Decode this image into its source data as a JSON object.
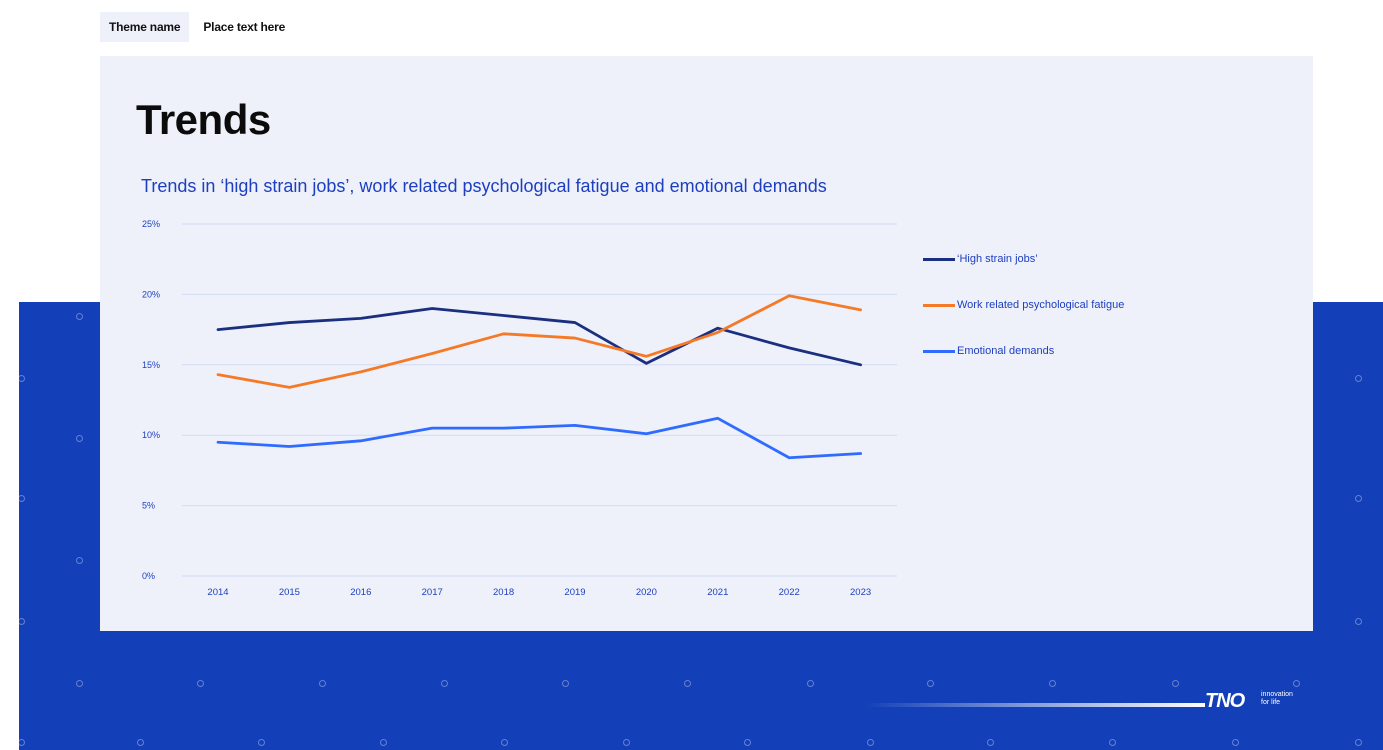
{
  "header": {
    "theme_name": "Theme name",
    "place_text": "Place text here"
  },
  "page": {
    "title": "Trends"
  },
  "chart_data": {
    "type": "line",
    "title": "Trends in ‘high strain jobs’, work related psychological fatigue and emotional demands",
    "xlabel": "",
    "ylabel": "",
    "categories": [
      "2014",
      "2015",
      "2016",
      "2017",
      "2018",
      "2019",
      "2020",
      "2021",
      "2022",
      "2023"
    ],
    "y_ticks": [
      "0%",
      "5%",
      "10%",
      "15%",
      "20%",
      "25%"
    ],
    "ylim": [
      0,
      25
    ],
    "grid": true,
    "legend_position": "right",
    "series": [
      {
        "name": "‘High strain jobs’",
        "color": "#1b2f80",
        "values": [
          17.5,
          18.0,
          18.3,
          19.0,
          18.5,
          18.0,
          15.1,
          17.6,
          16.2,
          15.0
        ]
      },
      {
        "name": "Work related psychological fatigue",
        "color": "#f47a27",
        "values": [
          14.3,
          13.4,
          14.5,
          15.8,
          17.2,
          16.9,
          15.6,
          17.3,
          19.9,
          18.9
        ]
      },
      {
        "name": "Emotional demands",
        "color": "#2f6bff",
        "values": [
          9.5,
          9.2,
          9.6,
          10.5,
          10.5,
          10.7,
          10.1,
          11.2,
          8.4,
          8.7
        ]
      }
    ]
  },
  "brand": {
    "logo": "TNO",
    "tagline_1": "innovation",
    "tagline_2": "for life"
  }
}
